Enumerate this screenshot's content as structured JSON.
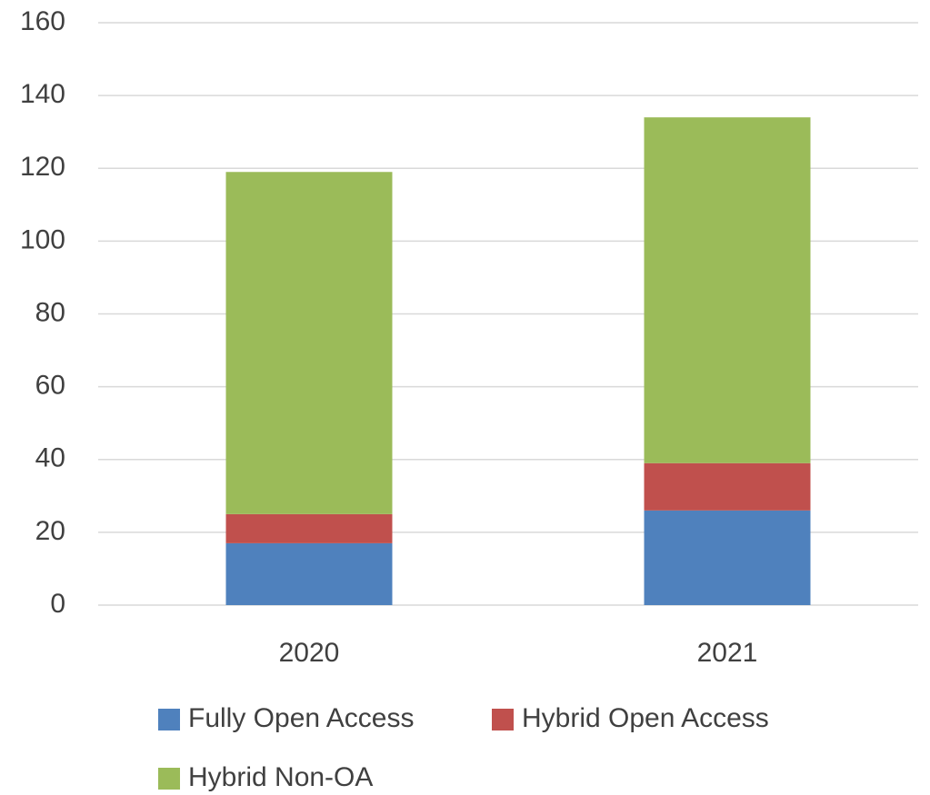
{
  "chart_data": {
    "type": "stacked_bar",
    "categories": [
      "2020",
      "2021"
    ],
    "series": [
      {
        "name": "Fully Open Access",
        "color": "#4f81bd",
        "values": [
          17,
          26
        ]
      },
      {
        "name": "Hybrid Open Access",
        "color": "#c0504d",
        "values": [
          8,
          13
        ]
      },
      {
        "name": "Hybrid Non-OA",
        "color": "#9bbb59",
        "values": [
          94,
          95
        ]
      }
    ],
    "ylim": [
      0,
      160
    ],
    "yticks": [
      0,
      20,
      40,
      60,
      80,
      100,
      120,
      140,
      160
    ],
    "grid": true,
    "legend": "bottom"
  }
}
